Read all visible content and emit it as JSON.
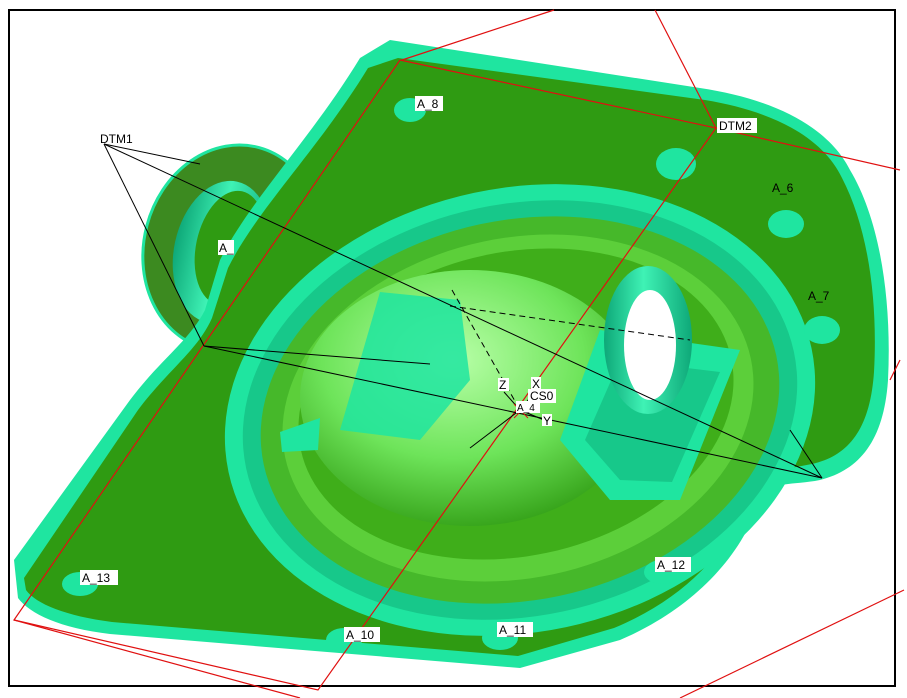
{
  "viewport": {
    "background": "#ffffff",
    "border_color": "#000000"
  },
  "colors": {
    "face_green": "#2f9b12",
    "face_green_light": "#3fae1a",
    "cyan_edge": "#1fe5a0",
    "cyan_dark": "#0ea878",
    "sphere": "#7ee86a",
    "datum_red": "#e01010",
    "axis_black": "#000000"
  },
  "datum_labels": {
    "dtm1": "DTM1",
    "dtm2": "DTM2",
    "csys": "CS0",
    "axis_z": "Z",
    "axis_x": "X",
    "axis_y": "Y",
    "axis_a4": "A_4"
  },
  "axis_labels": {
    "a_4_side": "A_",
    "a_6": "A_6",
    "a_7": "A_7",
    "a_8": "A_8",
    "a_10": "A_10",
    "a_11": "A_11",
    "a_12": "A_12",
    "a_13": "A_13"
  }
}
